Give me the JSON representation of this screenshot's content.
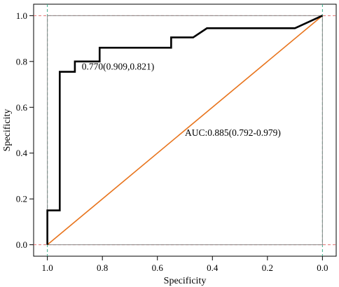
{
  "chart_data": {
    "type": "line",
    "title": "",
    "xlabel": "Specificity",
    "ylabel": "Specificity",
    "xlim": [
      1.05,
      -0.05
    ],
    "ylim": [
      -0.05,
      1.05
    ],
    "x_reversed": true,
    "x_ticks": [
      1.0,
      0.8,
      0.6,
      0.4,
      0.2,
      0.0
    ],
    "x_tick_labels": [
      "1.0",
      "0.8",
      "0.6",
      "0.4",
      "0.2",
      "0.0"
    ],
    "y_ticks": [
      0.0,
      0.2,
      0.4,
      0.6,
      0.8,
      1.0
    ],
    "y_tick_labels": [
      "0.0",
      "0.2",
      "0.4",
      "0.6",
      "0.8",
      "1.0"
    ],
    "grid": false,
    "series": [
      {
        "color": "#000000",
        "step": true,
        "x": [
          1.0,
          1.0,
          0.955,
          0.955,
          0.9,
          0.9,
          0.81,
          0.81,
          0.55,
          0.55,
          0.47,
          0.42,
          0.42,
          0.1,
          0.0
        ],
        "y": [
          0.0,
          0.15,
          0.15,
          0.755,
          0.755,
          0.8,
          0.8,
          0.86,
          0.86,
          0.905,
          0.905,
          0.945,
          0.945,
          0.945,
          1.0
        ]
      },
      {
        "color": "#e8741c",
        "x": [
          1.0,
          0.0
        ],
        "y": [
          0.0,
          1.0
        ]
      }
    ],
    "reference_lines": {
      "vertical": {
        "x": [
          1.0,
          0.0
        ],
        "color": "#3aaa88"
      },
      "horizontal": {
        "y": [
          0.0,
          1.0
        ],
        "color": "#e07070"
      }
    },
    "annotations": [
      {
        "text": "0.770(0.909,0.821)",
        "x": 0.875,
        "y": 0.765
      },
      {
        "text": "AUC:0.885(0.792-0.979)",
        "x": 0.5,
        "y": 0.475
      }
    ]
  }
}
